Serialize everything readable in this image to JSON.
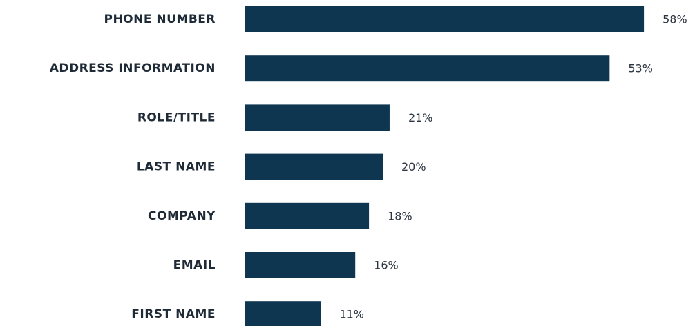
{
  "chart_data": {
    "type": "bar",
    "orientation": "horizontal",
    "categories": [
      "PHONE NUMBER",
      "ADDRESS INFORMATION",
      "ROLE/TITLE",
      "LAST NAME",
      "COMPANY",
      "EMAIL",
      "FIRST NAME"
    ],
    "values": [
      58,
      53,
      21,
      20,
      18,
      16,
      11
    ],
    "value_labels": [
      "58%",
      "53%",
      "21%",
      "20%",
      "18%",
      "16%",
      "11%"
    ],
    "color": "#0f3651"
  }
}
